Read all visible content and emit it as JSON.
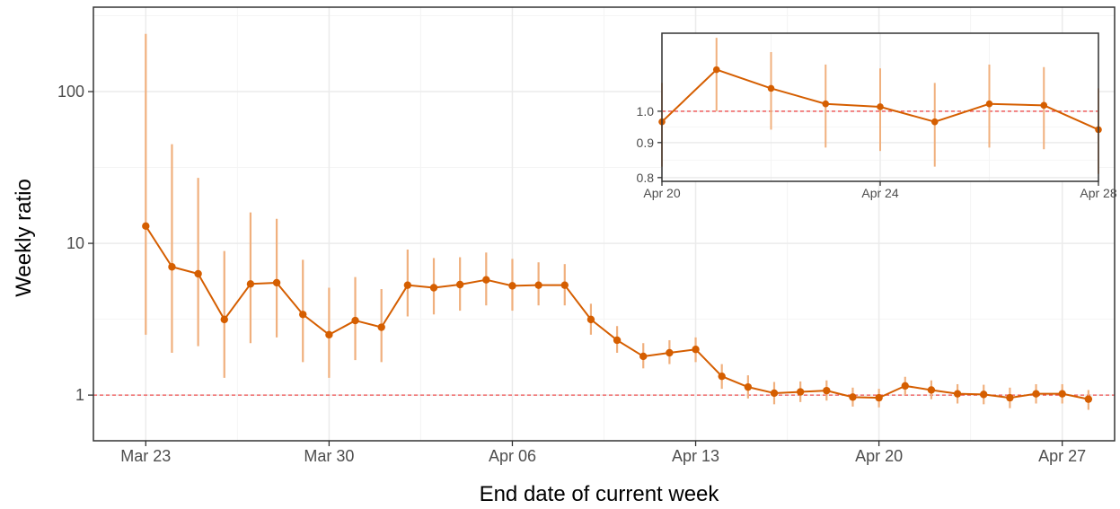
{
  "colors": {
    "line": "#D55E00",
    "errorbar": "#F0B07E",
    "reference": "#F05050",
    "grid_major": "#EBEBEB",
    "grid_minor": "#F4F4F4",
    "panel_border": "#333333"
  },
  "chart_data": [
    {
      "type": "line",
      "title": "",
      "xlabel": "End date of current week",
      "ylabel": "Weekly ratio",
      "y_scale": "log10",
      "ylim": [
        0.5,
        360
      ],
      "xlim": [
        "2020-03-21",
        "2020-04-29"
      ],
      "x_ticks": [
        {
          "date": "2020-03-23",
          "label": "Mar 23"
        },
        {
          "date": "2020-03-30",
          "label": "Mar 30"
        },
        {
          "date": "2020-04-06",
          "label": "Apr 06"
        },
        {
          "date": "2020-04-13",
          "label": "Apr 13"
        },
        {
          "date": "2020-04-20",
          "label": "Apr 20"
        },
        {
          "date": "2020-04-27",
          "label": "Apr 27"
        }
      ],
      "y_ticks": [
        {
          "value": 1,
          "label": "1"
        },
        {
          "value": 10,
          "label": "10"
        },
        {
          "value": 100,
          "label": "100"
        }
      ],
      "reference_line": 1,
      "grid": true,
      "series": [
        {
          "points": [
            {
              "x": "2020-03-23",
              "y": 13.0,
              "lo": 2.5,
              "hi": 240
            },
            {
              "x": "2020-03-24",
              "y": 7.0,
              "lo": 1.9,
              "hi": 45
            },
            {
              "x": "2020-03-25",
              "y": 6.3,
              "lo": 2.1,
              "hi": 27
            },
            {
              "x": "2020-03-26",
              "y": 3.15,
              "lo": 1.3,
              "hi": 8.9
            },
            {
              "x": "2020-03-27",
              "y": 5.4,
              "lo": 2.2,
              "hi": 16
            },
            {
              "x": "2020-03-28",
              "y": 5.5,
              "lo": 2.4,
              "hi": 14.5
            },
            {
              "x": "2020-03-29",
              "y": 3.4,
              "lo": 1.65,
              "hi": 7.8
            },
            {
              "x": "2020-03-30",
              "y": 2.5,
              "lo": 1.3,
              "hi": 5.1
            },
            {
              "x": "2020-03-31",
              "y": 3.1,
              "lo": 1.7,
              "hi": 6.0
            },
            {
              "x": "2020-04-01",
              "y": 2.8,
              "lo": 1.65,
              "hi": 5.0
            },
            {
              "x": "2020-04-02",
              "y": 5.3,
              "lo": 3.3,
              "hi": 9.1
            },
            {
              "x": "2020-04-03",
              "y": 5.1,
              "lo": 3.4,
              "hi": 8.0
            },
            {
              "x": "2020-04-04",
              "y": 5.35,
              "lo": 3.6,
              "hi": 8.1
            },
            {
              "x": "2020-04-05",
              "y": 5.75,
              "lo": 3.9,
              "hi": 8.7
            },
            {
              "x": "2020-04-06",
              "y": 5.25,
              "lo": 3.6,
              "hi": 7.9
            },
            {
              "x": "2020-04-07",
              "y": 5.3,
              "lo": 3.9,
              "hi": 7.5
            },
            {
              "x": "2020-04-08",
              "y": 5.3,
              "lo": 3.9,
              "hi": 7.3
            },
            {
              "x": "2020-04-09",
              "y": 3.15,
              "lo": 2.5,
              "hi": 4.0
            },
            {
              "x": "2020-04-10",
              "y": 2.3,
              "lo": 1.9,
              "hi": 2.85
            },
            {
              "x": "2020-04-11",
              "y": 1.8,
              "lo": 1.5,
              "hi": 2.2
            },
            {
              "x": "2020-04-12",
              "y": 1.9,
              "lo": 1.6,
              "hi": 2.3
            },
            {
              "x": "2020-04-13",
              "y": 2.0,
              "lo": 1.65,
              "hi": 2.4
            },
            {
              "x": "2020-04-14",
              "y": 1.33,
              "lo": 1.1,
              "hi": 1.6
            },
            {
              "x": "2020-04-15",
              "y": 1.13,
              "lo": 0.95,
              "hi": 1.35
            },
            {
              "x": "2020-04-16",
              "y": 1.03,
              "lo": 0.87,
              "hi": 1.22
            },
            {
              "x": "2020-04-17",
              "y": 1.05,
              "lo": 0.9,
              "hi": 1.23
            },
            {
              "x": "2020-04-18",
              "y": 1.07,
              "lo": 0.92,
              "hi": 1.25
            },
            {
              "x": "2020-04-19",
              "y": 0.97,
              "lo": 0.84,
              "hi": 1.12
            },
            {
              "x": "2020-04-20",
              "y": 0.96,
              "lo": 0.83,
              "hi": 1.1
            },
            {
              "x": "2020-04-21",
              "y": 1.15,
              "lo": 1.0,
              "hi": 1.32
            },
            {
              "x": "2020-04-22",
              "y": 1.08,
              "lo": 0.94,
              "hi": 1.25
            },
            {
              "x": "2020-04-23",
              "y": 1.02,
              "lo": 0.88,
              "hi": 1.18
            },
            {
              "x": "2020-04-24",
              "y": 1.01,
              "lo": 0.87,
              "hi": 1.17
            },
            {
              "x": "2020-04-25",
              "y": 0.96,
              "lo": 0.82,
              "hi": 1.12
            },
            {
              "x": "2020-04-26",
              "y": 1.02,
              "lo": 0.88,
              "hi": 1.18
            },
            {
              "x": "2020-04-27",
              "y": 1.02,
              "lo": 0.88,
              "hi": 1.18
            },
            {
              "x": "2020-04-28",
              "y": 0.94,
              "lo": 0.8,
              "hi": 1.08
            }
          ]
        }
      ]
    },
    {
      "type": "line",
      "title": "",
      "xlabel": "",
      "ylabel": "",
      "y_scale": "log10",
      "ylim": [
        0.79,
        1.3
      ],
      "xlim": [
        "2020-04-20",
        "2020-04-28"
      ],
      "x_ticks": [
        {
          "date": "2020-04-20",
          "label": "Apr 20"
        },
        {
          "date": "2020-04-24",
          "label": "Apr 24"
        },
        {
          "date": "2020-04-28",
          "label": "Apr 28"
        }
      ],
      "y_ticks": [
        {
          "value": 0.8,
          "label": "0.8"
        },
        {
          "value": 0.9,
          "label": "0.9"
        },
        {
          "value": 1.0,
          "label": "1.0"
        }
      ],
      "reference_line": 1,
      "grid": true,
      "series": [
        {
          "points": [
            {
              "x": "2020-04-20",
              "y": 0.965,
              "lo": 0.83,
              "hi": 1.1
            },
            {
              "x": "2020-04-21",
              "y": 1.15,
              "lo": 1.0,
              "hi": 1.28
            },
            {
              "x": "2020-04-22",
              "y": 1.08,
              "lo": 0.94,
              "hi": 1.22
            },
            {
              "x": "2020-04-23",
              "y": 1.025,
              "lo": 0.885,
              "hi": 1.17
            },
            {
              "x": "2020-04-24",
              "y": 1.015,
              "lo": 0.875,
              "hi": 1.155
            },
            {
              "x": "2020-04-25",
              "y": 0.965,
              "lo": 0.83,
              "hi": 1.1
            },
            {
              "x": "2020-04-26",
              "y": 1.025,
              "lo": 0.885,
              "hi": 1.17
            },
            {
              "x": "2020-04-27",
              "y": 1.02,
              "lo": 0.88,
              "hi": 1.16
            },
            {
              "x": "2020-04-28",
              "y": 0.94,
              "lo": 0.81,
              "hi": 1.08
            }
          ]
        }
      ]
    }
  ]
}
